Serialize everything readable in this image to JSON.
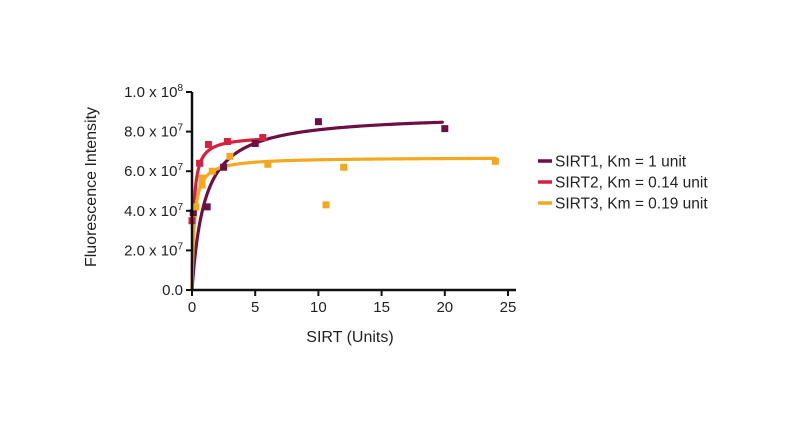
{
  "chart_data": {
    "type": "scatter",
    "xlabel": "SIRT (Units)",
    "ylabel": "Fluorescence Intensity",
    "xlim": [
      0,
      25
    ],
    "ylim": [
      0,
      100000000
    ],
    "x_ticks": [
      0,
      5,
      10,
      15,
      20,
      25
    ],
    "x_tick_labels": [
      "0",
      "5",
      "10",
      "15",
      "20",
      "25"
    ],
    "y_ticks": [
      0,
      20000000,
      40000000,
      60000000,
      80000000,
      100000000
    ],
    "y_tick_labels": [
      {
        "mantissa": "0.0",
        "exponent": ""
      },
      {
        "mantissa": "2.0 x 10",
        "exponent": "7"
      },
      {
        "mantissa": "4.0 x 10",
        "exponent": "7"
      },
      {
        "mantissa": "6.0 x 10",
        "exponent": "7"
      },
      {
        "mantissa": "8.0 x 10",
        "exponent": "7"
      },
      {
        "mantissa": "1.0 x 10",
        "exponent": "8"
      }
    ],
    "grid": false,
    "legend_position": "right",
    "series": [
      {
        "name": "SIRT1, Km = 1 unit",
        "color": "#6b0f45",
        "fit_vmax": 89000000,
        "fit_km": 1,
        "fit_range": [
          0,
          19.8
        ],
        "points": [
          {
            "x": 0.1,
            "y": 39000000
          },
          {
            "x": 1.2,
            "y": 42000000
          },
          {
            "x": 2.5,
            "y": 62000000
          },
          {
            "x": 5.0,
            "y": 74000000
          },
          {
            "x": 10.0,
            "y": 85000000
          },
          {
            "x": 20.0,
            "y": 81500000
          }
        ]
      },
      {
        "name": "SIRT2, Km = 0.14 unit",
        "color": "#d6203f",
        "fit_vmax": 78000000,
        "fit_km": 0.14,
        "fit_range": [
          0,
          5.8
        ],
        "points": [
          {
            "x": 0.0,
            "y": 35000000
          },
          {
            "x": 0.6,
            "y": 64000000
          },
          {
            "x": 1.3,
            "y": 73500000
          },
          {
            "x": 2.8,
            "y": 75000000
          },
          {
            "x": 5.6,
            "y": 77000000
          }
        ]
      },
      {
        "name": "SIRT3, Km = 0.19 unit",
        "color": "#f2a91f",
        "fit_vmax": 67000000,
        "fit_km": 0.19,
        "fit_range": [
          0,
          24
        ],
        "points": [
          {
            "x": 0.3,
            "y": 42000000
          },
          {
            "x": 0.8,
            "y": 53000000
          },
          {
            "x": 0.8,
            "y": 56500000
          },
          {
            "x": 1.6,
            "y": 60000000
          },
          {
            "x": 3.0,
            "y": 67500000
          },
          {
            "x": 6.0,
            "y": 63500000
          },
          {
            "x": 10.6,
            "y": 43000000
          },
          {
            "x": 12.0,
            "y": 62000000
          },
          {
            "x": 24.0,
            "y": 65000000
          }
        ]
      }
    ]
  }
}
